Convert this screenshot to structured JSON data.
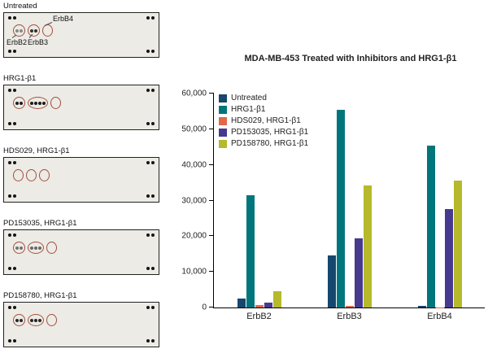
{
  "panels": [
    {
      "label": "Untreated",
      "circles": [
        [
          0.45,
          0.45
        ],
        [
          0.85,
          0.85
        ],
        []
      ],
      "annotations": {
        "erbb2": "ErbB2",
        "erbb3": "ErbB3",
        "erbb4": "ErbB4"
      }
    },
    {
      "label": "HRG1-β1",
      "circles": [
        [
          0.95,
          0.95
        ],
        [
          0.95,
          0.95,
          0.95,
          0.95
        ],
        []
      ]
    },
    {
      "label": "HDS029, HRG1-β1",
      "circles": [
        [],
        [],
        []
      ]
    },
    {
      "label": "PD153035, HRG1-β1",
      "circles": [
        [
          0.55,
          0.55
        ],
        [
          0.6,
          0.6,
          0.6
        ],
        []
      ]
    },
    {
      "label": "PD158780, HRG1-β1",
      "circles": [
        [
          0.9,
          0.9
        ],
        [
          0.9,
          0.9,
          0.9
        ],
        []
      ]
    }
  ],
  "colors": {
    "membrane_background": "#ecebe6",
    "spot_circle_outline": "#a34f3d",
    "reference_dot": "#151515"
  },
  "chart_data": {
    "type": "bar",
    "title": "MDA-MB-453 Treated with Inhibitors and HRG1-β1",
    "categories": [
      "ErbB2",
      "ErbB3",
      "ErbB4"
    ],
    "series": [
      {
        "name": "Untreated",
        "color": "#16476e",
        "values": [
          2500,
          14500,
          500
        ]
      },
      {
        "name": "HRG1-β1",
        "color": "#00767c",
        "values": [
          31500,
          55500,
          45300
        ]
      },
      {
        "name": "HDS029, HRG1-β1",
        "color": "#e0694c",
        "values": [
          600,
          400,
          100
        ]
      },
      {
        "name": "PD153035, HRG1-β1",
        "color": "#47398e",
        "values": [
          1300,
          19300,
          27500
        ]
      },
      {
        "name": "PD158780, HRG1-β1",
        "color": "#b5b92b",
        "values": [
          4500,
          34300,
          35700
        ]
      }
    ],
    "xlabel": "",
    "ylabel": "",
    "ylim": [
      0,
      60000
    ],
    "ytick_step": 10000,
    "ytick_labels": [
      "0",
      "10,000",
      "20,000",
      "30,000",
      "40,000",
      "50,000",
      "60,000"
    ],
    "legend_position": "top-left",
    "grid": false
  }
}
